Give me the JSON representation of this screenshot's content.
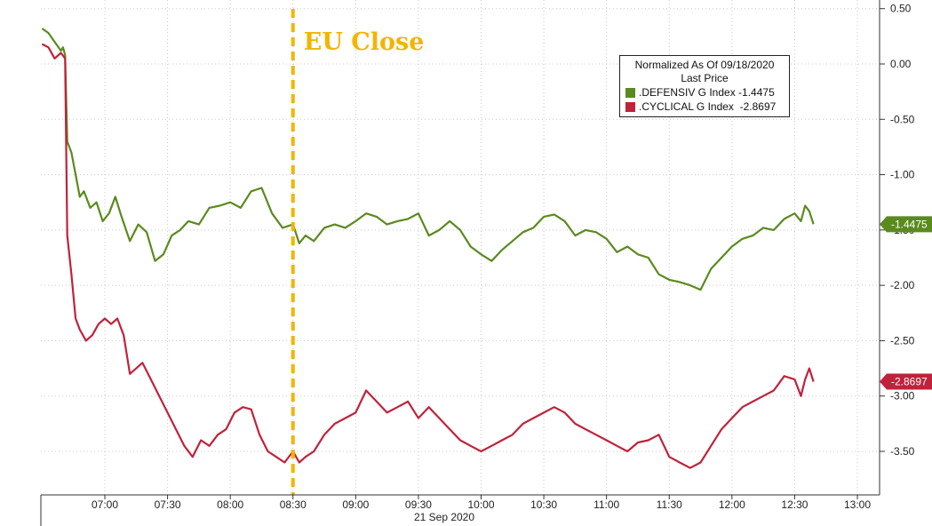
{
  "chart_data": {
    "type": "line",
    "xlabel": "21 Sep 2020",
    "ylabel": "",
    "x_ticks": [
      "07:00",
      "07:30",
      "08:00",
      "08:30",
      "09:00",
      "09:30",
      "10:00",
      "10:30",
      "11:00",
      "11:30",
      "12:00",
      "12:30",
      "13:00"
    ],
    "y_ticks": [
      "0.50",
      "0.00",
      "-0.50",
      "-1.00",
      "-1.50",
      "-2.00",
      "-2.50",
      "-3.00",
      "-3.50"
    ],
    "ylim": [
      -3.9,
      0.55
    ],
    "xlim_minutes": [
      "06:30",
      "13:10"
    ],
    "grid": true,
    "annotation": {
      "text": "EU Close",
      "x": "08:30",
      "color": "#f4b400"
    },
    "legend": {
      "title": "Normalized As Of 09/18/2020",
      "subtitle": "Last Price",
      "placement": "top-right"
    },
    "series": [
      {
        "name": ".DEFENSIV G Index",
        "color": "#5a8a1e",
        "last_value": "-1.4475",
        "points": [
          [
            "06:30",
            0.32
          ],
          [
            "06:33",
            0.28
          ],
          [
            "06:36",
            0.2
          ],
          [
            "06:39",
            0.12
          ],
          [
            "06:40",
            0.15
          ],
          [
            "06:41",
            0.08
          ],
          [
            "06:42",
            -0.7
          ],
          [
            "06:44",
            -0.8
          ],
          [
            "06:46",
            -1.0
          ],
          [
            "06:48",
            -1.2
          ],
          [
            "06:50",
            -1.15
          ],
          [
            "06:53",
            -1.3
          ],
          [
            "06:56",
            -1.25
          ],
          [
            "06:59",
            -1.42
          ],
          [
            "07:02",
            -1.35
          ],
          [
            "07:05",
            -1.2
          ],
          [
            "07:08",
            -1.38
          ],
          [
            "07:12",
            -1.6
          ],
          [
            "07:16",
            -1.45
          ],
          [
            "07:20",
            -1.52
          ],
          [
            "07:24",
            -1.78
          ],
          [
            "07:28",
            -1.72
          ],
          [
            "07:32",
            -1.55
          ],
          [
            "07:36",
            -1.5
          ],
          [
            "07:40",
            -1.42
          ],
          [
            "07:45",
            -1.45
          ],
          [
            "07:50",
            -1.3
          ],
          [
            "07:55",
            -1.28
          ],
          [
            "08:00",
            -1.25
          ],
          [
            "08:05",
            -1.3
          ],
          [
            "08:10",
            -1.15
          ],
          [
            "08:15",
            -1.12
          ],
          [
            "08:20",
            -1.35
          ],
          [
            "08:25",
            -1.48
          ],
          [
            "08:30",
            -1.45
          ],
          [
            "08:33",
            -1.62
          ],
          [
            "08:36",
            -1.55
          ],
          [
            "08:40",
            -1.6
          ],
          [
            "08:45",
            -1.48
          ],
          [
            "08:50",
            -1.45
          ],
          [
            "08:55",
            -1.48
          ],
          [
            "09:00",
            -1.42
          ],
          [
            "09:05",
            -1.35
          ],
          [
            "09:10",
            -1.38
          ],
          [
            "09:15",
            -1.45
          ],
          [
            "09:20",
            -1.42
          ],
          [
            "09:25",
            -1.4
          ],
          [
            "09:30",
            -1.35
          ],
          [
            "09:35",
            -1.55
          ],
          [
            "09:40",
            -1.5
          ],
          [
            "09:45",
            -1.42
          ],
          [
            "09:50",
            -1.5
          ],
          [
            "09:55",
            -1.65
          ],
          [
            "10:00",
            -1.72
          ],
          [
            "10:05",
            -1.78
          ],
          [
            "10:10",
            -1.68
          ],
          [
            "10:15",
            -1.6
          ],
          [
            "10:20",
            -1.52
          ],
          [
            "10:25",
            -1.48
          ],
          [
            "10:30",
            -1.38
          ],
          [
            "10:35",
            -1.36
          ],
          [
            "10:40",
            -1.42
          ],
          [
            "10:45",
            -1.55
          ],
          [
            "10:50",
            -1.5
          ],
          [
            "10:55",
            -1.52
          ],
          [
            "11:00",
            -1.58
          ],
          [
            "11:05",
            -1.7
          ],
          [
            "11:10",
            -1.65
          ],
          [
            "11:15",
            -1.72
          ],
          [
            "11:20",
            -1.75
          ],
          [
            "11:25",
            -1.9
          ],
          [
            "11:30",
            -1.95
          ],
          [
            "11:35",
            -1.97
          ],
          [
            "11:40",
            -2.0
          ],
          [
            "11:45",
            -2.04
          ],
          [
            "11:50",
            -1.85
          ],
          [
            "11:55",
            -1.75
          ],
          [
            "12:00",
            -1.65
          ],
          [
            "12:05",
            -1.58
          ],
          [
            "12:10",
            -1.55
          ],
          [
            "12:15",
            -1.48
          ],
          [
            "12:20",
            -1.5
          ],
          [
            "12:25",
            -1.4
          ],
          [
            "12:30",
            -1.35
          ],
          [
            "12:33",
            -1.42
          ],
          [
            "12:35",
            -1.28
          ],
          [
            "12:37",
            -1.33
          ],
          [
            "12:39",
            -1.4475
          ]
        ]
      },
      {
        "name": ".CYCLICAL G Index",
        "color": "#c0223b",
        "last_value": "-2.8697",
        "points": [
          [
            "06:30",
            0.18
          ],
          [
            "06:33",
            0.15
          ],
          [
            "06:36",
            0.05
          ],
          [
            "06:39",
            0.1
          ],
          [
            "06:41",
            0.05
          ],
          [
            "06:42",
            -1.55
          ],
          [
            "06:44",
            -1.9
          ],
          [
            "06:46",
            -2.3
          ],
          [
            "06:48",
            -2.4
          ],
          [
            "06:51",
            -2.5
          ],
          [
            "06:54",
            -2.45
          ],
          [
            "06:57",
            -2.35
          ],
          [
            "07:00",
            -2.3
          ],
          [
            "07:03",
            -2.35
          ],
          [
            "07:06",
            -2.3
          ],
          [
            "07:09",
            -2.45
          ],
          [
            "07:12",
            -2.8
          ],
          [
            "07:15",
            -2.75
          ],
          [
            "07:18",
            -2.7
          ],
          [
            "07:22",
            -2.85
          ],
          [
            "07:26",
            -3.0
          ],
          [
            "07:30",
            -3.15
          ],
          [
            "07:34",
            -3.3
          ],
          [
            "07:38",
            -3.45
          ],
          [
            "07:42",
            -3.55
          ],
          [
            "07:46",
            -3.4
          ],
          [
            "07:50",
            -3.45
          ],
          [
            "07:54",
            -3.35
          ],
          [
            "07:58",
            -3.3
          ],
          [
            "08:02",
            -3.15
          ],
          [
            "08:06",
            -3.1
          ],
          [
            "08:10",
            -3.12
          ],
          [
            "08:14",
            -3.35
          ],
          [
            "08:18",
            -3.5
          ],
          [
            "08:22",
            -3.55
          ],
          [
            "08:26",
            -3.6
          ],
          [
            "08:30",
            -3.5
          ],
          [
            "08:33",
            -3.6
          ],
          [
            "08:36",
            -3.55
          ],
          [
            "08:40",
            -3.5
          ],
          [
            "08:45",
            -3.35
          ],
          [
            "08:50",
            -3.25
          ],
          [
            "08:55",
            -3.2
          ],
          [
            "09:00",
            -3.15
          ],
          [
            "09:05",
            -2.95
          ],
          [
            "09:10",
            -3.05
          ],
          [
            "09:15",
            -3.15
          ],
          [
            "09:20",
            -3.1
          ],
          [
            "09:25",
            -3.05
          ],
          [
            "09:30",
            -3.2
          ],
          [
            "09:35",
            -3.1
          ],
          [
            "09:40",
            -3.2
          ],
          [
            "09:45",
            -3.3
          ],
          [
            "09:50",
            -3.4
          ],
          [
            "09:55",
            -3.45
          ],
          [
            "10:00",
            -3.5
          ],
          [
            "10:05",
            -3.45
          ],
          [
            "10:10",
            -3.4
          ],
          [
            "10:15",
            -3.35
          ],
          [
            "10:20",
            -3.25
          ],
          [
            "10:25",
            -3.2
          ],
          [
            "10:30",
            -3.15
          ],
          [
            "10:35",
            -3.1
          ],
          [
            "10:40",
            -3.15
          ],
          [
            "10:45",
            -3.25
          ],
          [
            "10:50",
            -3.3
          ],
          [
            "10:55",
            -3.35
          ],
          [
            "11:00",
            -3.4
          ],
          [
            "11:05",
            -3.45
          ],
          [
            "11:10",
            -3.5
          ],
          [
            "11:15",
            -3.42
          ],
          [
            "11:20",
            -3.4
          ],
          [
            "11:25",
            -3.35
          ],
          [
            "11:30",
            -3.55
          ],
          [
            "11:35",
            -3.6
          ],
          [
            "11:40",
            -3.65
          ],
          [
            "11:45",
            -3.6
          ],
          [
            "11:50",
            -3.45
          ],
          [
            "11:55",
            -3.3
          ],
          [
            "12:00",
            -3.2
          ],
          [
            "12:05",
            -3.1
          ],
          [
            "12:10",
            -3.05
          ],
          [
            "12:15",
            -3.0
          ],
          [
            "12:20",
            -2.95
          ],
          [
            "12:25",
            -2.82
          ],
          [
            "12:30",
            -2.85
          ],
          [
            "12:33",
            -3.0
          ],
          [
            "12:35",
            -2.85
          ],
          [
            "12:37",
            -2.75
          ],
          [
            "12:39",
            -2.8697
          ]
        ]
      }
    ]
  }
}
